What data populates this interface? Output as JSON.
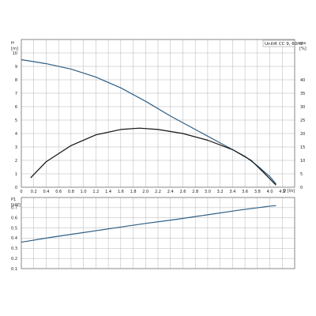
{
  "chart_data": [
    {
      "type": "line",
      "legend": "Unilift CC 9, 60Hz",
      "xlabel": "Q [l/s]",
      "ylabel_left": [
        "H",
        "[m]"
      ],
      "ylabel_right": [
        "eta",
        "[%]"
      ],
      "xlim": [
        0,
        4.4
      ],
      "ylim": [
        0,
        11
      ],
      "ylim_right": [
        0,
        55
      ],
      "x_ticks": [
        "0",
        "0.2",
        "0.4",
        "0.6",
        "0.8",
        "1.0",
        "1.2",
        "1.4",
        "1.6",
        "1.8",
        "2.0",
        "2.2",
        "2.4",
        "2.6",
        "2.8",
        "3.0",
        "3.2",
        "3.4",
        "3.6",
        "3.8",
        "4.0",
        "4.2"
      ],
      "y_ticks": [
        "0",
        "1",
        "2",
        "3",
        "4",
        "5",
        "6",
        "7",
        "8",
        "9",
        "10"
      ],
      "y_ticks_right": [
        "0",
        "5",
        "10",
        "15",
        "20",
        "25",
        "30",
        "35",
        "40"
      ],
      "grid": true,
      "series": [
        {
          "axis": "left",
          "color": "#2e5f86",
          "x": [
            0,
            0.4,
            0.8,
            1.2,
            1.6,
            2.0,
            2.4,
            2.8,
            3.2,
            3.6,
            3.8,
            4.0,
            4.1
          ],
          "y": [
            9.5,
            9.2,
            8.8,
            8.2,
            7.4,
            6.4,
            5.3,
            4.3,
            3.3,
            2.3,
            1.6,
            0.8,
            0.25
          ]
        },
        {
          "axis": "right",
          "color": "#111111",
          "x": [
            0.15,
            0.4,
            0.8,
            1.2,
            1.6,
            1.9,
            2.2,
            2.6,
            3.0,
            3.4,
            3.7,
            3.9,
            4.1
          ],
          "y": [
            3.5,
            9.5,
            15.5,
            19.5,
            21.5,
            22.0,
            21.5,
            20.0,
            17.5,
            14.0,
            10.0,
            5.5,
            0.8
          ]
        }
      ]
    },
    {
      "type": "line",
      "ylabel": [
        "P1",
        "[kW]"
      ],
      "xlim": [
        0,
        4.4
      ],
      "ylim": [
        0.1,
        0.8
      ],
      "y_ticks": [
        "0.1",
        "0.2",
        "0.3",
        "0.4",
        "0.5",
        "0.6",
        "0.7"
      ],
      "grid": true,
      "series": [
        {
          "color": "#2e5f86",
          "x": [
            0,
            0.5,
            1.0,
            1.5,
            2.0,
            2.5,
            3.0,
            3.5,
            4.0,
            4.1
          ],
          "y": [
            0.36,
            0.41,
            0.455,
            0.5,
            0.545,
            0.585,
            0.63,
            0.675,
            0.715,
            0.72
          ]
        }
      ]
    }
  ]
}
